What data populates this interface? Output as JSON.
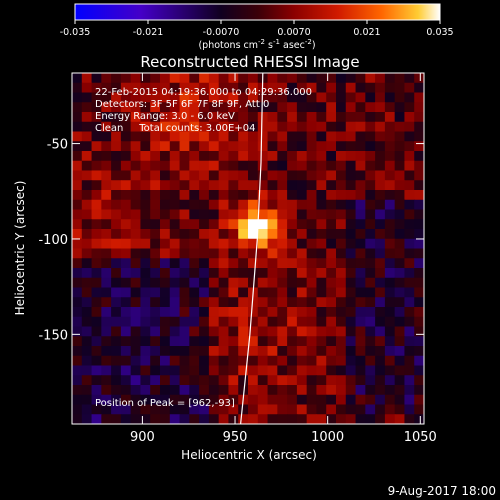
{
  "chart_data": {
    "type": "heatmap",
    "title": "Reconstructed RHESSI Image",
    "xlabel": "Heliocentric X (arcsec)",
    "ylabel": "Heliocentric Y (arcsec)",
    "xlim": [
      862,
      1052
    ],
    "ylim": [
      -197,
      -13
    ],
    "xticks": [
      900,
      950,
      1000,
      1050
    ],
    "yticks": [
      -50,
      -100,
      -150
    ],
    "colorbar": {
      "range": [
        -0.035,
        0.035
      ],
      "ticks": [
        -0.035,
        -0.021,
        -0.007,
        0.007,
        0.021,
        0.035
      ],
      "tick_labels": [
        "-0.035",
        "-0.021",
        "-0.0070",
        "0.0070",
        "0.021",
        "0.035"
      ],
      "label_text": "(photons cm",
      "label_sup1": "-2",
      "label_mid": " s",
      "label_sup2": "-1",
      "label_mid2": " asec",
      "label_sup3": "-2",
      "label_end": ")",
      "colormap": [
        "#0000ff",
        "#4400c8",
        "#100020",
        "#3a0008",
        "#8b0000",
        "#d01a00",
        "#ff6600",
        "#ffcc33",
        "#ffffff"
      ]
    },
    "peak": {
      "x": 962,
      "y": -93,
      "value": 0.035
    },
    "limb_curve": [
      [
        953,
        -197
      ],
      [
        958,
        -150
      ],
      [
        962,
        -100
      ],
      [
        964,
        -60
      ],
      [
        965,
        -13
      ]
    ],
    "annotations": [
      "22-Feb-2015 04:19:36.000 to 04:29:36.000",
      "Detectors: 3F 5F 6F 7F 8F 9F, Att 0",
      "Energy Range: 3.0 - 6.0 keV",
      "Clean     Total counts: 3.00E+04"
    ],
    "peak_label": "Position of Peak = [962,-93]"
  },
  "footer": {
    "date": "9-Aug-2017 18:00"
  }
}
